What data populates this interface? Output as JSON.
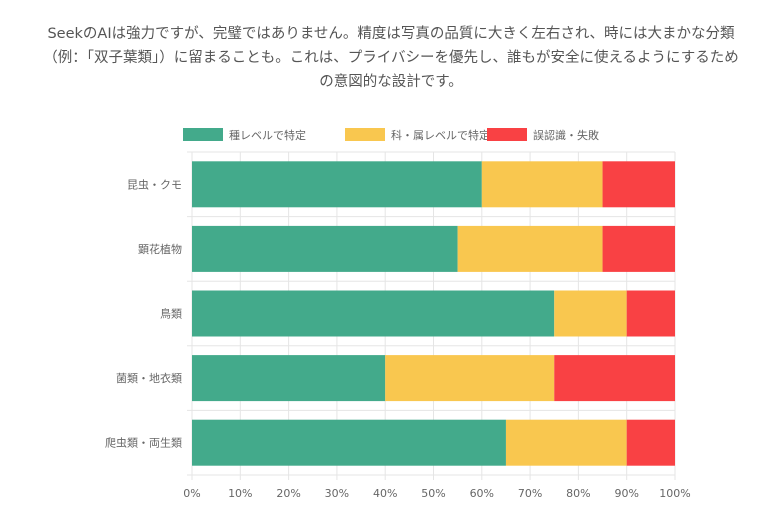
{
  "description": "SeekのAIは強力ですが、完璧ではありません。精度は写真の品質に大きく左右され、時には大まかな分類（例：「双子葉類」）に留まることも。これは、プライバシーを優先し、誰もが安全に使えるようにするための意図的な設計です。",
  "chart_data": {
    "type": "bar",
    "orientation": "horizontal",
    "stacked": true,
    "title": "",
    "xlabel": "",
    "ylabel": "",
    "xlim": [
      0,
      100
    ],
    "x_ticks": [
      "0%",
      "10%",
      "20%",
      "30%",
      "40%",
      "50%",
      "60%",
      "70%",
      "80%",
      "90%",
      "100%"
    ],
    "grid": true,
    "legend_position": "top",
    "categories": [
      "昆虫・クモ",
      "顕花植物",
      "鳥類",
      "菌類・地衣類",
      "爬虫類・両生類"
    ],
    "series": [
      {
        "name": "種レベルで特定",
        "color": "#43aa8b",
        "values": [
          60,
          55,
          75,
          40,
          65
        ]
      },
      {
        "name": "科・属レベルで特定",
        "color": "#f9c74f",
        "values": [
          25,
          30,
          15,
          35,
          25
        ]
      },
      {
        "name": "誤認識・失敗",
        "color": "#f94144",
        "values": [
          15,
          15,
          10,
          25,
          10
        ]
      }
    ]
  }
}
